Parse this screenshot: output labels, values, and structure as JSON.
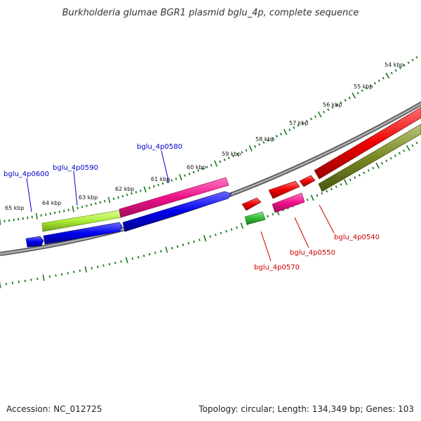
{
  "title": "Burkholderia glumae BGR1 plasmid bglu_4p, complete sequence",
  "footer": {
    "accession": "Accession: NC_012725",
    "topology": "Topology: circular; Length: 134,349 bp; Genes: 103"
  },
  "scale_labels": [
    "54 kbp",
    "55 kbp",
    "56 kbp",
    "57 kbp",
    "58 kbp",
    "59 kbp",
    "60 kbp",
    "61 kbp",
    "62 kbp",
    "63 kbp",
    "64 kbp",
    "65 kbp"
  ],
  "gene_labels": {
    "bglu_4p0600": "bglu_4p0600",
    "bglu_4p0590": "bglu_4p0590",
    "bglu_4p0580": "bglu_4p0580",
    "bglu_4p0570": "bglu_4p0570",
    "bglu_4p0550": "bglu_4p0550",
    "bglu_4p0540": "bglu_4p0540"
  },
  "colors": {
    "backbone": "#808080",
    "scale_ticks": "#1a7a1a",
    "forward_label": "#0000cc",
    "reverse_label": "#cc0000",
    "blue": "#0000ee",
    "red": "#ee0000",
    "magenta": "#ee1188",
    "lime": "#aaee33",
    "green": "#33bb33",
    "olive": "#778822"
  }
}
